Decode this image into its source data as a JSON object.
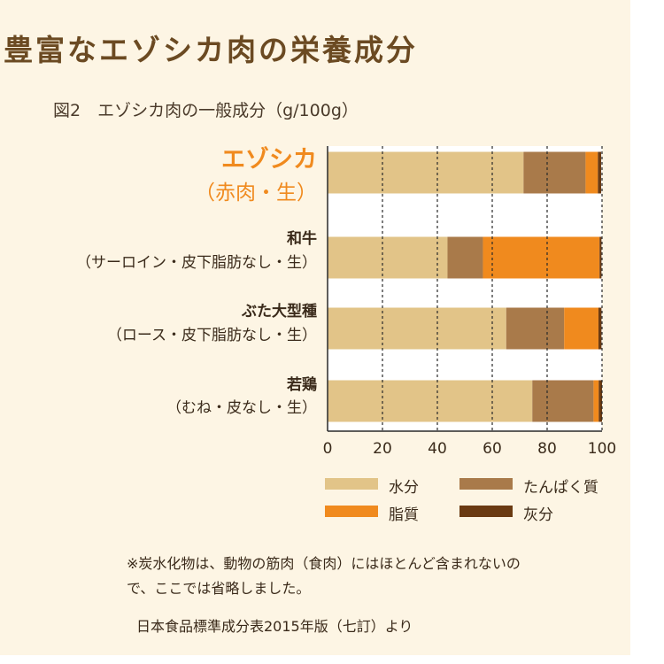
{
  "title": "豊富なエゾシカ肉の栄養成分",
  "subtitle": "図2　エゾシカ肉の一般成分（g/100g）",
  "chart_data": {
    "type": "bar",
    "orientation": "horizontal",
    "stacked": true,
    "categories": [
      {
        "name": "エゾシカ",
        "desc": "（赤肉・生）",
        "highlight": true
      },
      {
        "name": "和牛",
        "desc": "（サーロイン・皮下脂肪なし・生）",
        "highlight": false
      },
      {
        "name": "ぶた大型種",
        "desc": "（ロース・皮下脂肪なし・生）",
        "highlight": false
      },
      {
        "name": "若鶏",
        "desc": "（むね・皮なし・生）",
        "highlight": false
      }
    ],
    "series": [
      {
        "name": "水分",
        "color": "#e2c488",
        "values": [
          71.4,
          43.7,
          65.1,
          74.6
        ]
      },
      {
        "name": "たんぱく質",
        "color": "#a97a4a",
        "values": [
          22.6,
          12.9,
          21.1,
          22.3
        ]
      },
      {
        "name": "脂質",
        "color": "#f08a1e",
        "values": [
          4.5,
          42.5,
          12.5,
          1.9
        ]
      },
      {
        "name": "灰分",
        "color": "#6a3a12",
        "values": [
          1.2,
          0.7,
          1.1,
          1.2
        ]
      }
    ],
    "xlim": [
      0,
      100
    ],
    "xticks": [
      "0",
      "20",
      "40",
      "60",
      "80",
      "100"
    ],
    "grid": "vertical dashed"
  },
  "notes": [
    "※炭水化物は、動物の筋肉（食肉）にはほとんど含まれないので、ここでは省略しました。"
  ],
  "note_lines": [
    "※炭水化物は、動物の筋肉（食肉）にはほとんど含まれないの",
    "で、ここでは省略しました。"
  ],
  "source": "日本食品標準成分表2015年版（七訂）より"
}
